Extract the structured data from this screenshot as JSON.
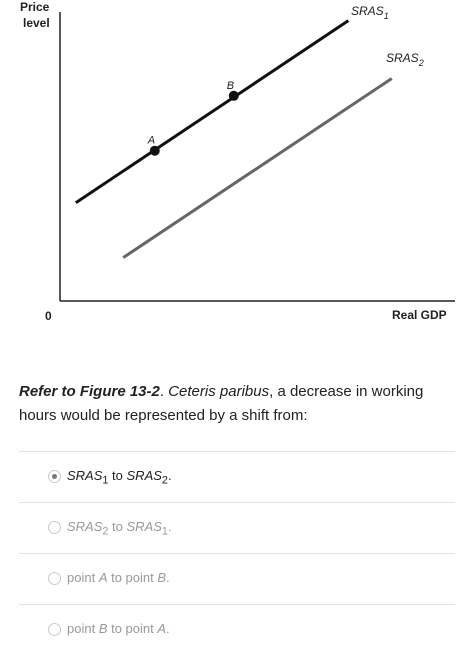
{
  "chart_data": {
    "type": "line",
    "ylabel": "Price level",
    "ylabel_lines": [
      "Price",
      "level"
    ],
    "xlabel": "Real GDP",
    "origin_label": "0",
    "series": [
      {
        "name": "SRAS1",
        "label_main": "SRAS",
        "label_sub": "1",
        "color": "#111111",
        "x": [
          0.04,
          0.73
        ],
        "y": [
          0.34,
          0.97
        ]
      },
      {
        "name": "SRAS2",
        "label_main": "SRAS",
        "label_sub": "2",
        "color": "#666666",
        "x": [
          0.16,
          0.84
        ],
        "y": [
          0.15,
          0.77
        ]
      }
    ],
    "points": [
      {
        "label": "A",
        "x": 0.24,
        "y": 0.52
      },
      {
        "label": "B",
        "x": 0.44,
        "y": 0.71
      }
    ]
  },
  "question": {
    "ref": "Refer to Figure 13-2",
    "sep": ". ",
    "ceteris": "Ceteris paribus",
    "rest": ", a decrease in working hours would be represented by a shift from:"
  },
  "options": [
    {
      "selected": true,
      "p1": "SRAS",
      "s1": "1",
      "mid": " to ",
      "p2": "SRAS",
      "s2": "2",
      "end": "."
    },
    {
      "selected": false,
      "p1": "SRAS",
      "s1": "2",
      "mid": " to ",
      "p2": "SRAS",
      "s2": "1",
      "end": "."
    },
    {
      "selected": false,
      "pre": "point ",
      "p1": "A",
      "mid": " to point ",
      "p2": "B",
      "end": "."
    },
    {
      "selected": false,
      "pre": "point ",
      "p1": "B",
      "mid": " to point ",
      "p2": "A",
      "end": "."
    }
  ]
}
